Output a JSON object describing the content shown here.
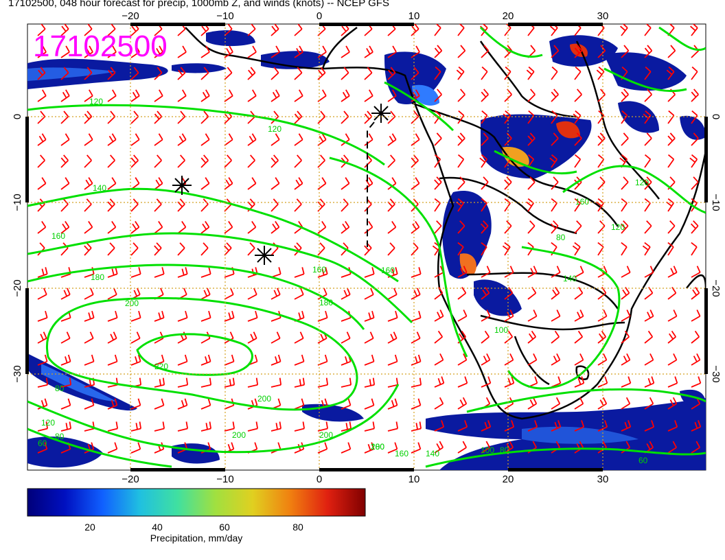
{
  "title": "17102500, 048 hour forecast for precip, 1000mb Z, and winds (knots) -- NCEP GFS",
  "stamp": "17102500",
  "stamp_color": "#ff00ff",
  "map": {
    "lon_ticks": [
      "−20",
      "−10",
      "0",
      "10",
      "20",
      "30"
    ],
    "lat_ticks": [
      "0",
      "−10",
      "−20",
      "−30"
    ],
    "contour_labels": [
      "120",
      "120",
      "140",
      "160",
      "160",
      "160",
      "180",
      "180",
      "200",
      "200",
      "200",
      "220",
      "200",
      "200",
      "160",
      "140",
      "120",
      "180",
      "80",
      "80",
      "60",
      "120",
      "80",
      "100",
      "140",
      "160",
      "120",
      "100",
      "80",
      "60"
    ],
    "contour_color": "#00e000",
    "barb_color": "#ff0000",
    "coast_color": "#000000"
  },
  "colorbar": {
    "ticks": [
      "20",
      "40",
      "60",
      "80"
    ],
    "label": "Precipitation, mm/day",
    "colors": [
      "#00007a",
      "#0010c0",
      "#1060ff",
      "#20c0e0",
      "#40e0a0",
      "#a0e040",
      "#e0d020",
      "#f08010",
      "#e02010",
      "#800000"
    ]
  }
}
